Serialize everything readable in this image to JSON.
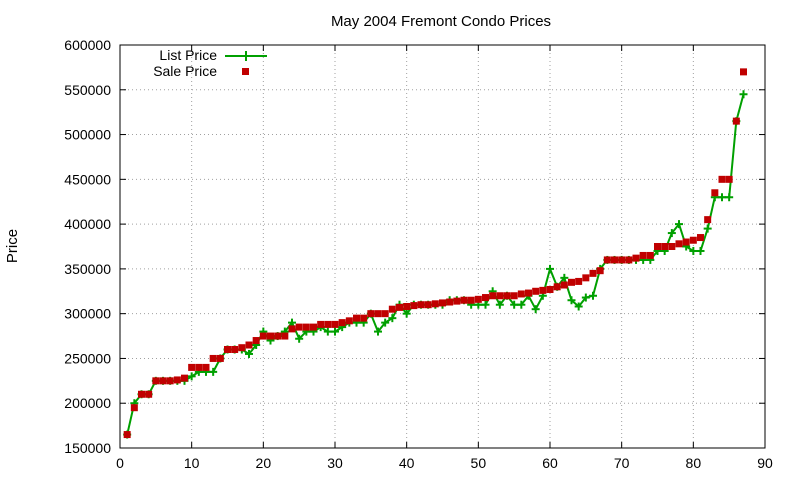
{
  "chart_data": {
    "type": "line",
    "title": "May 2004 Fremont Condo Prices",
    "xlabel": "",
    "ylabel": "Price",
    "xlim": [
      0,
      90
    ],
    "ylim": [
      150000,
      600000
    ],
    "xticks": [
      0,
      10,
      20,
      30,
      40,
      50,
      60,
      70,
      80,
      90
    ],
    "yticks": [
      150000,
      200000,
      250000,
      300000,
      350000,
      400000,
      450000,
      500000,
      550000,
      600000
    ],
    "grid": true,
    "legend_position": "top-left",
    "series": [
      {
        "name": "List Price",
        "style": "line+cross",
        "color": "#00a000",
        "x": [
          1,
          2,
          3,
          4,
          5,
          6,
          7,
          8,
          9,
          10,
          11,
          12,
          13,
          14,
          15,
          16,
          17,
          18,
          19,
          20,
          21,
          22,
          23,
          24,
          25,
          26,
          27,
          28,
          29,
          30,
          31,
          32,
          33,
          34,
          35,
          36,
          37,
          38,
          39,
          40,
          41,
          42,
          43,
          44,
          45,
          46,
          47,
          48,
          49,
          50,
          51,
          52,
          53,
          54,
          55,
          56,
          57,
          58,
          59,
          60,
          61,
          62,
          63,
          64,
          65,
          66,
          67,
          68,
          69,
          70,
          71,
          72,
          73,
          74,
          75,
          76,
          77,
          78,
          79,
          80,
          81,
          82,
          83,
          84,
          85,
          86,
          87
        ],
        "values": [
          165000,
          200000,
          210000,
          210000,
          225000,
          225000,
          225000,
          225000,
          225000,
          230000,
          235000,
          235000,
          235000,
          250000,
          260000,
          260000,
          260000,
          255000,
          265000,
          280000,
          270000,
          275000,
          280000,
          290000,
          272000,
          280000,
          280000,
          285000,
          280000,
          280000,
          285000,
          290000,
          290000,
          290000,
          300000,
          280000,
          290000,
          295000,
          310000,
          300000,
          310000,
          310000,
          310000,
          310000,
          310000,
          315000,
          315000,
          315000,
          310000,
          310000,
          310000,
          325000,
          310000,
          320000,
          310000,
          310000,
          320000,
          305000,
          320000,
          350000,
          330000,
          340000,
          315000,
          308000,
          318000,
          320000,
          350000,
          360000,
          360000,
          360000,
          360000,
          360000,
          360000,
          360000,
          370000,
          370000,
          390000,
          400000,
          375000,
          370000,
          370000,
          395000,
          430000,
          430000,
          430000,
          515000,
          545000
        ]
      },
      {
        "name": "Sale Price",
        "style": "square points",
        "color": "#c00000",
        "x": [
          1,
          2,
          3,
          4,
          5,
          6,
          7,
          8,
          9,
          10,
          11,
          12,
          13,
          14,
          15,
          16,
          17,
          18,
          19,
          20,
          21,
          22,
          23,
          24,
          25,
          26,
          27,
          28,
          29,
          30,
          31,
          32,
          33,
          34,
          35,
          36,
          37,
          38,
          39,
          40,
          41,
          42,
          43,
          44,
          45,
          46,
          47,
          48,
          49,
          50,
          51,
          52,
          53,
          54,
          55,
          56,
          57,
          58,
          59,
          60,
          61,
          62,
          63,
          64,
          65,
          66,
          67,
          68,
          69,
          70,
          71,
          72,
          73,
          74,
          75,
          76,
          77,
          78,
          79,
          80,
          81,
          82,
          83,
          84,
          85,
          86,
          87
        ],
        "values": [
          165000,
          195000,
          210000,
          210000,
          225000,
          225000,
          225000,
          226000,
          228000,
          240000,
          240000,
          240000,
          250000,
          250000,
          260000,
          260000,
          262000,
          265000,
          270000,
          275000,
          275000,
          275000,
          275000,
          283000,
          285000,
          285000,
          285000,
          288000,
          288000,
          288000,
          290000,
          292000,
          295000,
          295000,
          300000,
          300000,
          300000,
          305000,
          307000,
          308000,
          309000,
          310000,
          310000,
          311000,
          312000,
          313000,
          314000,
          315000,
          315000,
          316000,
          318000,
          320000,
          320000,
          320000,
          320000,
          322000,
          323000,
          325000,
          326000,
          327000,
          330000,
          332000,
          335000,
          336000,
          340000,
          345000,
          348000,
          360000,
          360000,
          360000,
          360000,
          362000,
          365000,
          365000,
          375000,
          375000,
          375000,
          378000,
          380000,
          382000,
          385000,
          405000,
          435000,
          450000,
          450000,
          515000,
          570000
        ]
      }
    ]
  }
}
